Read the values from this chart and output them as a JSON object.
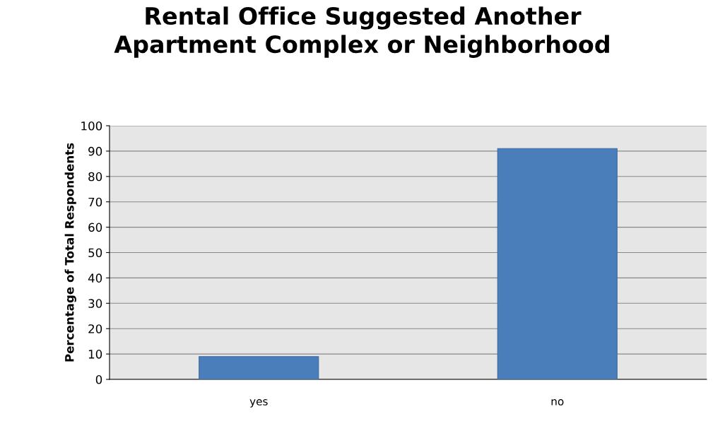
{
  "chart_data": {
    "type": "bar",
    "title": "Rental Office Suggested Another\nApartment Complex or Neighborhood",
    "ylabel": "Percentage of Total Respondents",
    "categories": [
      "yes",
      "no"
    ],
    "values": [
      9,
      91
    ],
    "color": "#4a7ebb",
    "ylim": [
      0,
      100
    ],
    "yticks": [
      0,
      10,
      20,
      30,
      40,
      50,
      60,
      70,
      80,
      90,
      100
    ],
    "grid": "y",
    "legend": false
  }
}
